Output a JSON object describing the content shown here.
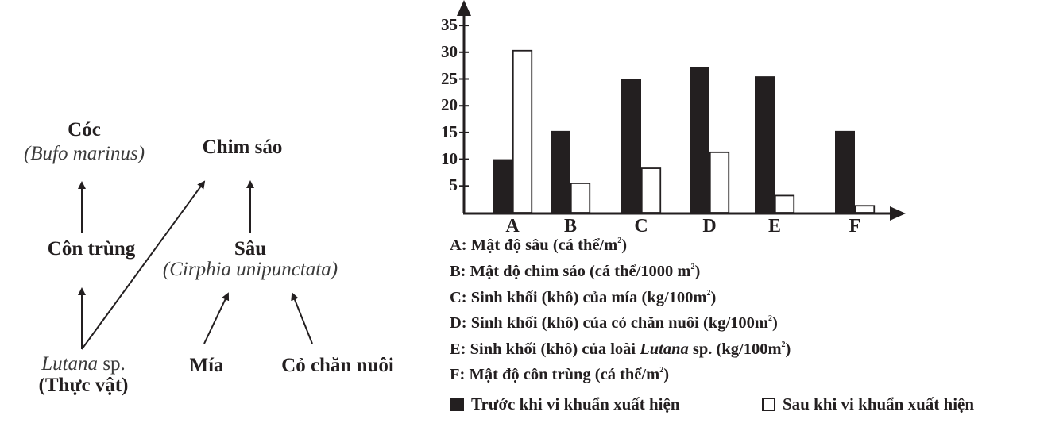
{
  "diagram": {
    "nodes": {
      "coc": {
        "name": "Cóc",
        "latin": "(Bufo marinus)"
      },
      "chim_sao": {
        "name": "Chim sáo"
      },
      "con_trung": {
        "name": "Côn trùng"
      },
      "sau": {
        "name": "Sâu",
        "latin": "(Cirphia unipunctata)"
      },
      "lutana": {
        "latin": "Lutana",
        "suffix": " sp.",
        "type": "(Thực vật)"
      },
      "mia": {
        "name": "Mía"
      },
      "co_chan_nuoi": {
        "name": "Cỏ chăn nuôi"
      }
    },
    "edges": [
      {
        "from": "Côn trùng",
        "to": "Cóc"
      },
      {
        "from": "Lutana sp.",
        "to": "Côn trùng"
      },
      {
        "from": "Lutana sp.",
        "to": "Chim sáo"
      },
      {
        "from": "Sâu",
        "to": "Chim sáo"
      },
      {
        "from": "Mía",
        "to": "Sâu"
      },
      {
        "from": "Cỏ chăn nuôi",
        "to": "Sâu"
      }
    ]
  },
  "chart_data": {
    "type": "bar",
    "title": "",
    "xlabel": "",
    "ylabel": "",
    "categories": [
      "A",
      "B",
      "C",
      "D",
      "E",
      "F"
    ],
    "yticks": [
      "35",
      "30",
      "25",
      "20",
      "15",
      "10",
      "5"
    ],
    "ylim": [
      0,
      37
    ],
    "grid": false,
    "series": [
      {
        "name": "Trước khi vi khuẩn xuất hiện",
        "color": "#231f20",
        "values": [
          10,
          15.3,
          25,
          27.3,
          25.5,
          15.3
        ]
      },
      {
        "name": "Sau khi vi khuẩn xuất hiện",
        "color": "#ffffff",
        "values": [
          30.3,
          5.5,
          8.3,
          11.3,
          3.2,
          1.3
        ]
      }
    ],
    "category_descriptions": [
      {
        "prefix": "A: Mật độ sâu (cá thể/m",
        "sup": "2",
        "suffix": ")"
      },
      {
        "prefix": "B: Mật độ chim sáo (cá thể/1000 m",
        "sup": "2",
        "suffix": ")"
      },
      {
        "prefix": "C: Sinh khối (khô) của mía (kg/100m",
        "sup": "2",
        "suffix": ")"
      },
      {
        "prefix": "D: Sinh khối (khô) của cỏ chăn nuôi (kg/100m",
        "sup": "2",
        "suffix": ")"
      },
      {
        "prefix": "E: Sinh khối (khô) của loài ",
        "italic": "Lutana",
        "mid": " sp. (kg/100m",
        "sup": "2",
        "suffix": ")"
      },
      {
        "prefix": "F: Mật độ côn trùng (cá thể/m",
        "sup": "2",
        "suffix": ")"
      }
    ],
    "legend": [
      {
        "label": "Trước khi vi khuẩn xuất hiện",
        "swatch": "black"
      },
      {
        "label": "Sau khi vi khuẩn xuất hiện",
        "swatch": "white"
      }
    ],
    "legend_position": "bottom"
  }
}
